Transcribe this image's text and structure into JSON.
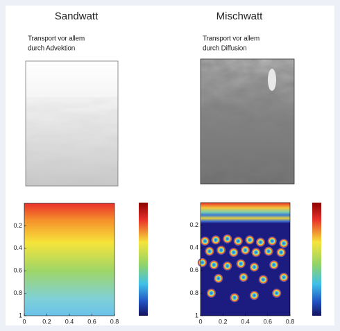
{
  "panels": [
    {
      "title": "Sandwatt",
      "caption": [
        "Transport vor allem",
        "durch Advektion"
      ],
      "xticks": [
        0,
        0.2,
        0.4,
        0.6,
        0.8
      ],
      "yticks": [
        0.2,
        0.4,
        0.6,
        0.8,
        1
      ]
    },
    {
      "title": "Mischwatt",
      "caption": [
        "Transport vor allem",
        "durch Diffusion"
      ],
      "xticks": [
        0,
        0.2,
        0.4,
        0.6,
        0.8
      ],
      "yticks": [
        0.2,
        0.4,
        0.6,
        0.8,
        1
      ]
    }
  ]
}
